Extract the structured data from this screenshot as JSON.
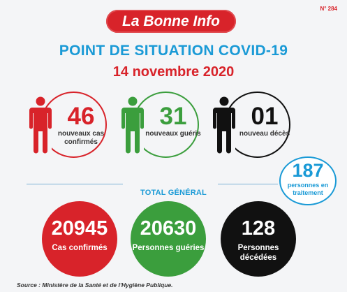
{
  "header": {
    "issue_number": "N° 284",
    "brand": "La Bonne Info",
    "title": "POINT DE SITUATION COVID-19",
    "date": "14 novembre 2020"
  },
  "daily": {
    "new_cases": {
      "value": "46",
      "label": "nouveaux cas confirmés"
    },
    "recovered": {
      "value": "31",
      "label": "nouveaux guéris"
    },
    "deaths": {
      "value": "01",
      "label": "nouveau décès"
    }
  },
  "treatment": {
    "value": "187",
    "label": "personnes en traitement"
  },
  "totals": {
    "title": "TOTAL GÉNÉRAL",
    "confirmed": {
      "value": "20945",
      "label": "Cas confirmés"
    },
    "recovered": {
      "value": "20630",
      "label": "Personnes guéries"
    },
    "deaths": {
      "value": "128",
      "label": "Personnes décédées"
    }
  },
  "source": "Source : Ministère de la Santé et de l'Hygiène Publique.",
  "colors": {
    "red": "#d8232a",
    "green": "#3b9e3d",
    "black": "#111111",
    "blue": "#1a9ad6"
  }
}
